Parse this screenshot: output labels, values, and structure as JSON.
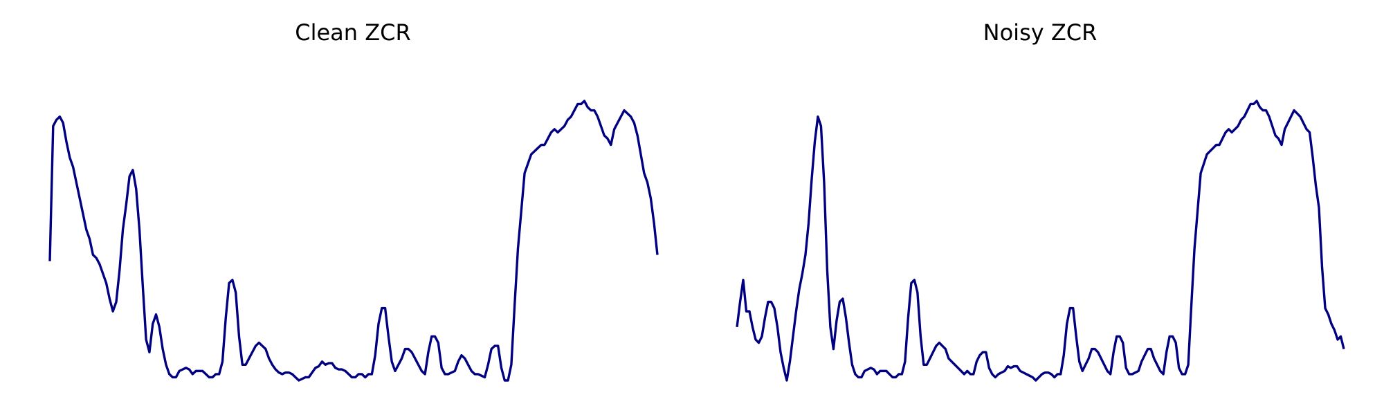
{
  "line_color": "#000080",
  "chart_data": [
    {
      "type": "line",
      "title": "Clean ZCR",
      "xlabel": "",
      "ylabel": "",
      "axes": "off",
      "grid": false,
      "ylim": [
        0,
        1
      ],
      "series": [
        {
          "values": [
            0.38,
            0.81,
            0.83,
            0.84,
            0.82,
            0.76,
            0.71,
            0.68,
            0.63,
            0.58,
            0.53,
            0.48,
            0.45,
            0.4,
            0.39,
            0.37,
            0.34,
            0.31,
            0.26,
            0.22,
            0.25,
            0.35,
            0.48,
            0.56,
            0.65,
            0.67,
            0.61,
            0.48,
            0.3,
            0.13,
            0.09,
            0.18,
            0.21,
            0.17,
            0.1,
            0.05,
            0.02,
            0.01,
            0.01,
            0.03,
            0.035,
            0.04,
            0.035,
            0.02,
            0.03,
            0.03,
            0.03,
            0.02,
            0.01,
            0.01,
            0.02,
            0.02,
            0.06,
            0.2,
            0.31,
            0.32,
            0.28,
            0.14,
            0.05,
            0.05,
            0.07,
            0.09,
            0.11,
            0.12,
            0.11,
            0.1,
            0.07,
            0.05,
            0.035,
            0.025,
            0.02,
            0.025,
            0.025,
            0.02,
            0.01,
            0.0,
            0.005,
            0.01,
            0.01,
            0.025,
            0.04,
            0.045,
            0.06,
            0.05,
            0.055,
            0.055,
            0.04,
            0.035,
            0.035,
            0.03,
            0.02,
            0.01,
            0.01,
            0.02,
            0.02,
            0.01,
            0.02,
            0.02,
            0.08,
            0.18,
            0.23,
            0.23,
            0.14,
            0.06,
            0.03,
            0.05,
            0.07,
            0.1,
            0.1,
            0.09,
            0.07,
            0.05,
            0.03,
            0.02,
            0.09,
            0.14,
            0.14,
            0.12,
            0.04,
            0.02,
            0.02,
            0.025,
            0.03,
            0.06,
            0.08,
            0.07,
            0.05,
            0.03,
            0.02,
            0.02,
            0.015,
            0.01,
            0.05,
            0.1,
            0.11,
            0.11,
            0.04,
            0.0,
            0.0,
            0.05,
            0.24,
            0.42,
            0.54,
            0.66,
            0.69,
            0.72,
            0.73,
            0.74,
            0.75,
            0.75,
            0.77,
            0.79,
            0.8,
            0.79,
            0.8,
            0.81,
            0.83,
            0.84,
            0.86,
            0.88,
            0.88,
            0.89,
            0.87,
            0.86,
            0.86,
            0.84,
            0.81,
            0.78,
            0.77,
            0.75,
            0.8,
            0.82,
            0.84,
            0.86,
            0.85,
            0.84,
            0.82,
            0.78,
            0.72,
            0.66,
            0.63,
            0.58,
            0.5,
            0.4
          ]
        }
      ]
    },
    {
      "type": "line",
      "title": "Noisy ZCR",
      "xlabel": "",
      "ylabel": "",
      "axes": "off",
      "grid": false,
      "ylim": [
        0,
        1
      ],
      "series": [
        {
          "values": [
            0.17,
            0.25,
            0.32,
            0.22,
            0.22,
            0.17,
            0.13,
            0.12,
            0.14,
            0.2,
            0.25,
            0.25,
            0.23,
            0.17,
            0.09,
            0.04,
            0.0,
            0.06,
            0.14,
            0.22,
            0.29,
            0.34,
            0.4,
            0.5,
            0.64,
            0.76,
            0.84,
            0.81,
            0.63,
            0.35,
            0.17,
            0.1,
            0.19,
            0.25,
            0.26,
            0.2,
            0.12,
            0.05,
            0.02,
            0.01,
            0.01,
            0.03,
            0.035,
            0.04,
            0.035,
            0.02,
            0.03,
            0.03,
            0.03,
            0.02,
            0.01,
            0.01,
            0.02,
            0.02,
            0.06,
            0.2,
            0.31,
            0.32,
            0.28,
            0.14,
            0.05,
            0.05,
            0.07,
            0.09,
            0.11,
            0.12,
            0.11,
            0.1,
            0.07,
            0.06,
            0.05,
            0.04,
            0.03,
            0.02,
            0.03,
            0.02,
            0.02,
            0.06,
            0.08,
            0.09,
            0.09,
            0.04,
            0.02,
            0.01,
            0.02,
            0.025,
            0.03,
            0.045,
            0.04,
            0.045,
            0.045,
            0.03,
            0.025,
            0.02,
            0.015,
            0.01,
            0.0,
            0.01,
            0.02,
            0.025,
            0.025,
            0.02,
            0.01,
            0.02,
            0.02,
            0.08,
            0.18,
            0.23,
            0.23,
            0.14,
            0.06,
            0.03,
            0.05,
            0.07,
            0.1,
            0.1,
            0.09,
            0.07,
            0.05,
            0.03,
            0.02,
            0.09,
            0.14,
            0.14,
            0.12,
            0.04,
            0.02,
            0.02,
            0.025,
            0.03,
            0.06,
            0.08,
            0.1,
            0.1,
            0.07,
            0.05,
            0.03,
            0.02,
            0.09,
            0.14,
            0.14,
            0.12,
            0.04,
            0.02,
            0.02,
            0.05,
            0.24,
            0.42,
            0.54,
            0.66,
            0.69,
            0.72,
            0.73,
            0.74,
            0.75,
            0.75,
            0.77,
            0.79,
            0.8,
            0.79,
            0.8,
            0.81,
            0.83,
            0.84,
            0.86,
            0.88,
            0.88,
            0.89,
            0.87,
            0.86,
            0.86,
            0.84,
            0.81,
            0.78,
            0.77,
            0.75,
            0.8,
            0.82,
            0.84,
            0.86,
            0.85,
            0.84,
            0.82,
            0.8,
            0.79,
            0.71,
            0.62,
            0.55,
            0.36,
            0.23,
            0.21,
            0.18,
            0.16,
            0.13,
            0.14,
            0.1
          ]
        }
      ]
    }
  ]
}
